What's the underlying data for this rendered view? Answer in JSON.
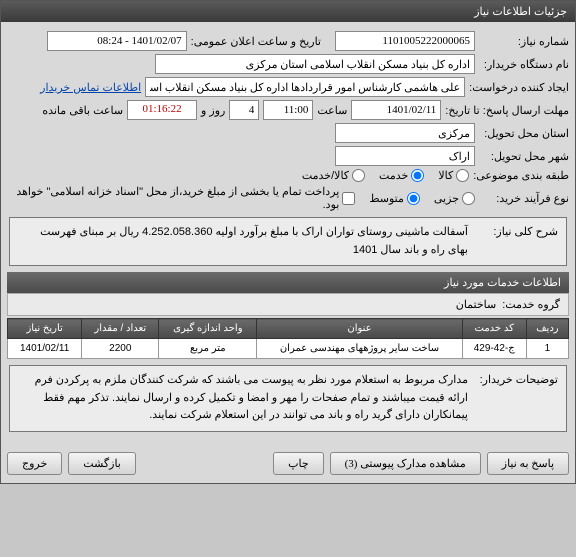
{
  "window_title": "جزئیات اطلاعات نیاز",
  "fields": {
    "need_number_label": "شماره نیاز:",
    "need_number": "1101005222000065",
    "announce_label": "تاریخ و ساعت اعلان عمومی:",
    "announce_value": "1401/02/07 - 08:24",
    "buyer_label": "نام دستگاه خریدار:",
    "buyer_value": "اداره کل بنیاد مسکن انقلاب اسلامی استان مرکزی",
    "requester_label": "ایجاد کننده درخواست:",
    "requester_value": "علی هاشمی کارشناس امور قراردادها اداره کل بنیاد مسکن انقلاب اسلامی اس",
    "contact_link": "اطلاعات تماس خریدار",
    "deadline_label": "مهلت ارسال پاسخ: تا تاریخ:",
    "deadline_date": "1401/02/11",
    "time_label": "ساعت",
    "deadline_time": "11:00",
    "days_val": "4",
    "days_label": "روز و",
    "countdown": "01:16:22",
    "remain_label": "ساعت باقی مانده",
    "province_label": "استان محل تحویل:",
    "province_value": "مرکزی",
    "city_label": "شهر محل تحویل:",
    "city_value": "اراک",
    "category_label": "طبقه بندی موضوعی:",
    "cat_goods": "کالا",
    "cat_service": "خدمت",
    "cat_both": "کالا/خدمت",
    "process_label": "نوع فرآیند خرید:",
    "proc_small": "جزیی",
    "proc_medium": "متوسط",
    "proc_note": "پرداخت تمام یا بخشی از مبلغ خرید،از محل \"اسناد خزانه اسلامی\" خواهد بود.",
    "desc_label": "شرح کلی نیاز:",
    "desc_text": "آسفالت ماشینی روستای تواران اراک با مبلغ برآورد اولیه 4.252.058.360 ریال بر مبنای فهرست بهای راه و باند سال 1401",
    "section_title": "اطلاعات خدمات مورد نیاز",
    "group_label": "گروه خدمت:",
    "group_value": "ساختمان",
    "notes_label": "توضیحات خریدار:",
    "notes_text": "مدارک مربوط به استعلام مورد نظر به پیوست می باشند که شرکت کنندگان ملزم به پرکردن فرم ارائه قیمت میباشند و تمام صفحات را مهر و امضا و تکمیل کرده و ارسال نمایند. تذکر مهم فقط پیمانکاران دارای گرید راه و باند می توانند در این استعلام شرکت نمایند."
  },
  "table": {
    "headers": [
      "ردیف",
      "کد خدمت",
      "عنوان",
      "واحد اندازه گیری",
      "تعداد / مقدار",
      "تاریخ نیاز"
    ],
    "rows": [
      [
        "1",
        "ج-42-429",
        "ساخت سایر پروژههای مهندسی عمران",
        "متر مربع",
        "2200",
        "1401/02/11"
      ]
    ]
  },
  "buttons": {
    "respond": "پاسخ به نیاز",
    "attachments": "مشاهده مدارک پیوستی (3)",
    "print": "چاپ",
    "back": "بازگشت",
    "exit": "خروج"
  }
}
